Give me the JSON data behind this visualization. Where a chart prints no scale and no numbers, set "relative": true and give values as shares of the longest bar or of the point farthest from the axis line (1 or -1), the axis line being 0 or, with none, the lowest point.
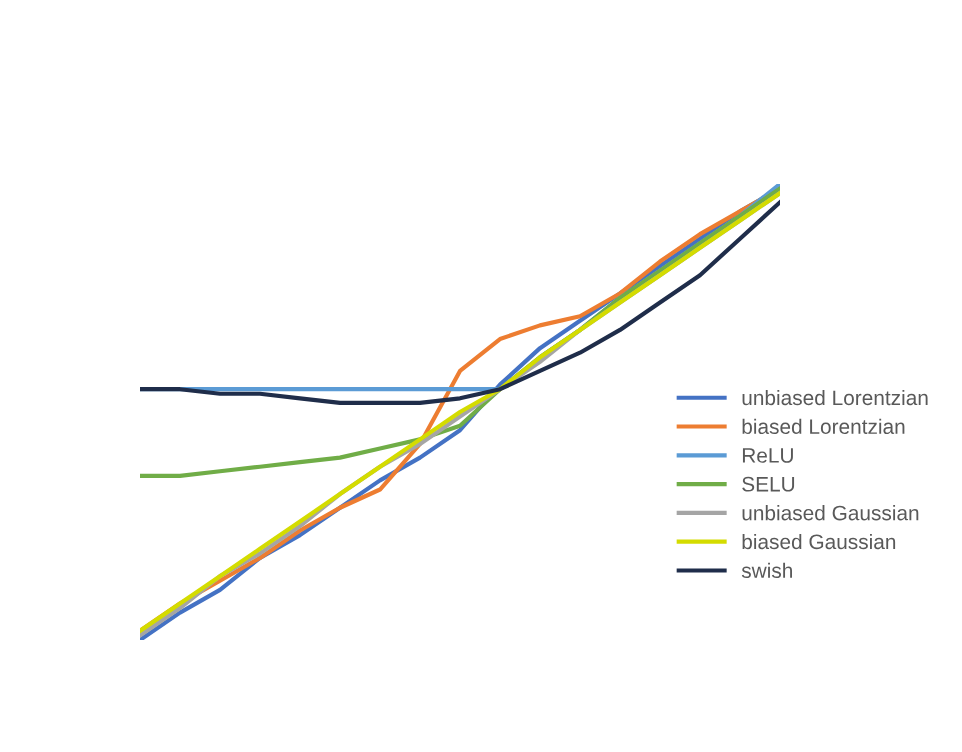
{
  "chart_data": {
    "type": "line",
    "relative": true,
    "legend": "right",
    "marker": "none",
    "line_style": "solid",
    "categories": [
      null,
      null,
      null,
      null,
      null,
      null,
      null,
      null,
      null,
      null,
      null,
      null,
      null,
      null,
      null,
      null,
      null
    ],
    "series": [
      {
        "name": "unbiased Lorentzian",
        "color": "#4472c4",
        "values": [
          0,
          0.06,
          0.11,
          0.18,
          0.23,
          0.29,
          0.35,
          0.4,
          0.46,
          0.56,
          0.64,
          0.7,
          0.76,
          0.82,
          0.88,
          0.94,
          0.99
        ]
      },
      {
        "name": "biased Lorentzian",
        "color": "#ed7d31",
        "values": [
          0.02,
          0.08,
          0.13,
          0.18,
          0.24,
          0.29,
          0.33,
          0.43,
          0.59,
          0.66,
          0.69,
          0.71,
          0.76,
          0.83,
          0.89,
          0.94,
          0.99
        ]
      },
      {
        "name": "ReLU",
        "color": "#5b9bd5",
        "values": [
          0.55,
          0.55,
          0.55,
          0.55,
          0.55,
          0.55,
          0.55,
          0.55,
          0.55,
          0.55,
          0.62,
          0.68,
          0.75,
          0.81,
          0.87,
          0.93,
          1
        ]
      },
      {
        "name": "SELU",
        "color": "#70ad47",
        "values": [
          0.36,
          0.36,
          0.37,
          0.38,
          0.39,
          0.4,
          0.42,
          0.44,
          0.47,
          0.55,
          0.62,
          0.68,
          0.75,
          0.81,
          0.87,
          0.93,
          0.99
        ]
      },
      {
        "name": "unbiased Gaussian",
        "color": "#a5a5a5",
        "values": [
          0.01,
          0.07,
          0.14,
          0.19,
          0.25,
          0.32,
          0.38,
          0.43,
          0.49,
          0.55,
          0.61,
          0.68,
          0.74,
          0.8,
          0.86,
          0.92,
          0.98
        ]
      },
      {
        "name": "biased Gaussian",
        "color": "#d4dc00",
        "values": [
          0.02,
          0.08,
          0.14,
          0.2,
          0.26,
          0.32,
          0.38,
          0.44,
          0.5,
          0.55,
          0.62,
          0.68,
          0.74,
          0.8,
          0.86,
          0.92,
          0.98
        ]
      },
      {
        "name": "swish",
        "color": "#1f2d4a",
        "values": [
          0.55,
          0.55,
          0.54,
          0.54,
          0.53,
          0.52,
          0.52,
          0.52,
          0.53,
          0.55,
          0.59,
          0.63,
          0.68,
          0.74,
          0.8,
          0.88,
          0.96
        ]
      }
    ]
  }
}
